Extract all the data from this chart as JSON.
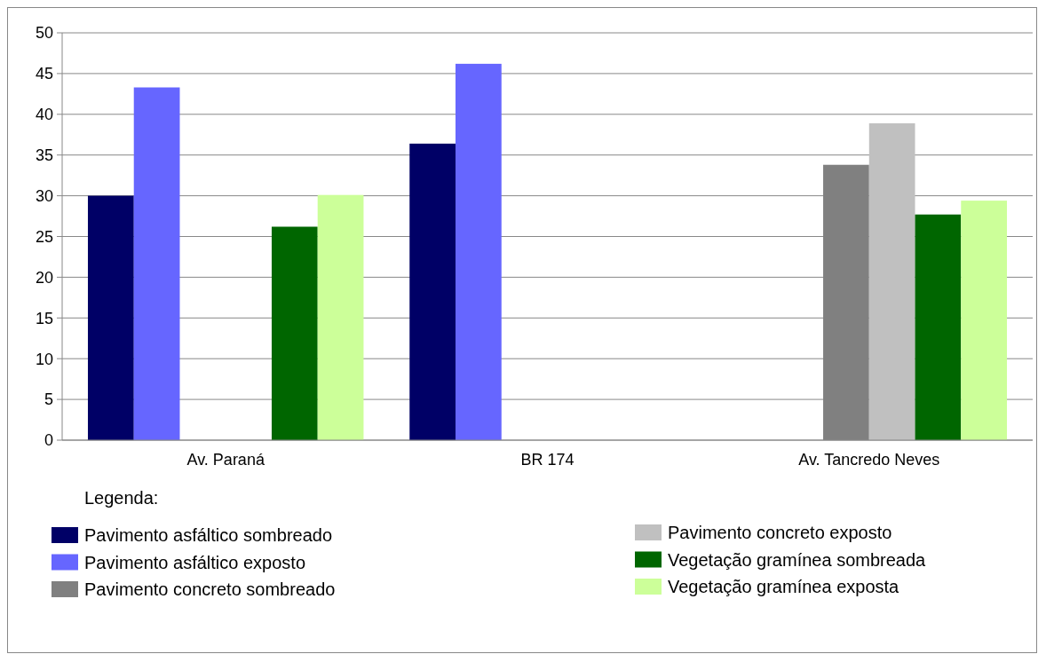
{
  "chart_data": {
    "type": "bar",
    "categories": [
      "Av. Paraná",
      "BR 174",
      "Av. Tancredo Neves"
    ],
    "series": [
      {
        "name": "Pavimento asfáltico sombreado",
        "color": "#000066",
        "values": [
          30,
          36.4,
          null
        ]
      },
      {
        "name": "Pavimento asfáltico exposto",
        "color": "#6666ff",
        "values": [
          43.3,
          46.2,
          null
        ]
      },
      {
        "name": "Pavimento concreto sombreado",
        "color": "#808080",
        "values": [
          null,
          null,
          33.8
        ]
      },
      {
        "name": "Pavimento concreto exposto",
        "color": "#c0c0c0",
        "values": [
          null,
          null,
          38.9
        ]
      },
      {
        "name": "Vegetação gramínea sombreada",
        "color": "#006600",
        "values": [
          26.2,
          null,
          27.7
        ]
      },
      {
        "name": "Vegetação gramínea exposta",
        "color": "#ccff99",
        "values": [
          30.1,
          null,
          29.4
        ]
      }
    ],
    "legend_title": "Legenda:",
    "legend": "bottom",
    "grid": "y",
    "ylim": [
      0,
      50
    ],
    "yticks": [
      0,
      5,
      10,
      15,
      20,
      25,
      30,
      35,
      40,
      45,
      50
    ]
  }
}
